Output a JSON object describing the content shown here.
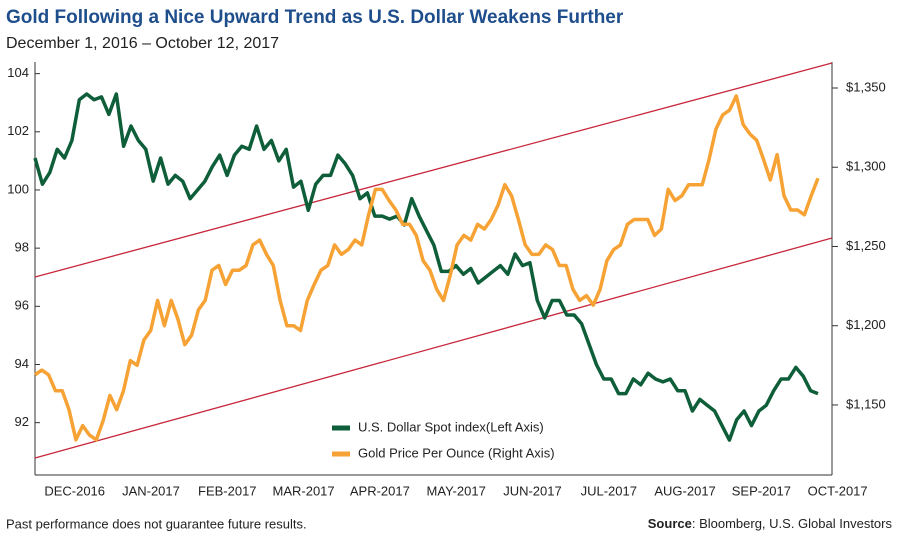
{
  "chart_data": {
    "type": "line",
    "title": "Gold Following a Nice Upward Trend as U.S. Dollar Weakens Further",
    "subtitle": "December 1, 2016 – October 12, 2017",
    "footnote": "Past performance does not guarantee future results.",
    "source_label": "Source",
    "source": ": Bloomberg, U.S. Global Investors",
    "xticks": [
      "DEC-2016",
      "JAN-2017",
      "FEB-2017",
      "MAR-2017",
      "APR-2017",
      "MAY-2017",
      "JUN-2017",
      "JUL-2017",
      "AUG-2017",
      "SEP-2017",
      "OCT-2017"
    ],
    "ylim": [
      90.2,
      104.4
    ],
    "yticks": [
      92,
      94,
      96,
      98,
      100,
      102,
      104
    ],
    "y2lim": [
      1105.8,
      1366.4
    ],
    "y2ticks": [
      {
        "value": 1150,
        "label": "$1,150"
      },
      {
        "value": 1200,
        "label": "$1,200"
      },
      {
        "value": 1250,
        "label": "$1,250"
      },
      {
        "value": 1300,
        "label": "$1,300"
      },
      {
        "value": 1350,
        "label": "$1,350"
      }
    ],
    "series": [
      {
        "name": "U.S. Dollar Spot index(Left Axis)",
        "color": "#0e5e3a",
        "axis": "y",
        "values": [
          101.1,
          100.2,
          100.6,
          101.4,
          101.1,
          101.7,
          103.1,
          103.3,
          103.1,
          103.2,
          102.6,
          103.3,
          101.5,
          102.2,
          101.7,
          101.4,
          100.3,
          101.1,
          100.2,
          100.5,
          100.3,
          99.7,
          100.0,
          100.3,
          100.8,
          101.2,
          100.5,
          101.2,
          101.5,
          101.4,
          102.2,
          101.4,
          101.7,
          101.0,
          101.4,
          100.1,
          100.3,
          99.3,
          100.2,
          100.5,
          100.5,
          101.2,
          100.9,
          100.5,
          99.7,
          99.9,
          99.1,
          99.1,
          99.0,
          99.1,
          98.8,
          99.7,
          99.1,
          98.6,
          98.1,
          97.2,
          97.2,
          97.4,
          97.1,
          97.3,
          96.8,
          97.0,
          97.2,
          97.4,
          97.1,
          97.8,
          97.4,
          97.5,
          96.2,
          95.6,
          96.2,
          96.2,
          95.7,
          95.7,
          95.4,
          94.7,
          94.0,
          93.5,
          93.5,
          93.0,
          93.0,
          93.5,
          93.3,
          93.7,
          93.5,
          93.4,
          93.5,
          93.1,
          93.1,
          92.4,
          92.8,
          92.6,
          92.4,
          91.9,
          91.4,
          92.1,
          92.4,
          91.9,
          92.4,
          92.6,
          93.1,
          93.5,
          93.5,
          93.9,
          93.6,
          93.1,
          93.0
        ]
      },
      {
        "name": "Gold Price Per Ounce (Right Axis)",
        "color": "#f7a234",
        "axis": "y2",
        "values": [
          1169,
          1172,
          1169,
          1159,
          1159,
          1147,
          1128,
          1137,
          1131,
          1128,
          1140,
          1156,
          1147,
          1159,
          1178,
          1175,
          1191,
          1197,
          1216,
          1200,
          1216,
          1204,
          1188,
          1194,
          1210,
          1216,
          1235,
          1238,
          1226,
          1235,
          1235,
          1238,
          1251,
          1254,
          1245,
          1238,
          1216,
          1200,
          1200,
          1197,
          1216,
          1226,
          1235,
          1238,
          1251,
          1245,
          1248,
          1254,
          1251,
          1270,
          1286,
          1286,
          1279,
          1273,
          1264,
          1264,
          1257,
          1241,
          1235,
          1223,
          1216,
          1232,
          1251,
          1257,
          1254,
          1264,
          1261,
          1267,
          1276,
          1289,
          1282,
          1267,
          1251,
          1245,
          1245,
          1251,
          1248,
          1238,
          1238,
          1223,
          1216,
          1219,
          1213,
          1223,
          1241,
          1248,
          1251,
          1264,
          1267,
          1267,
          1267,
          1257,
          1261,
          1286,
          1279,
          1282,
          1289,
          1289,
          1289,
          1305,
          1324,
          1333,
          1336,
          1345,
          1327,
          1321,
          1317,
          1305,
          1292,
          1308,
          1282,
          1273,
          1273,
          1270,
          1282,
          1293
        ]
      }
    ]
  }
}
